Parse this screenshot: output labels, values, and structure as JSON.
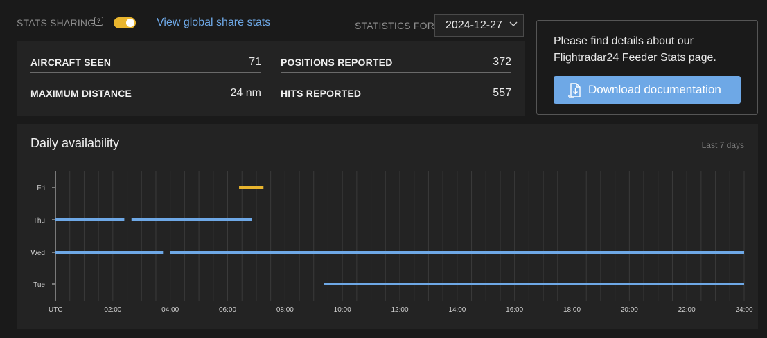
{
  "top": {
    "sharing_label": "STATS SHARING",
    "help_glyph": "?",
    "toggle_on": true,
    "global_link": "View global share stats",
    "stats_for_label": "STATISTICS FOR",
    "date_value": "2024-12-27"
  },
  "stats": [
    {
      "label": "AIRCRAFT SEEN",
      "value": "71"
    },
    {
      "label": "MAXIMUM DISTANCE",
      "value": "24 nm"
    },
    {
      "label": "POSITIONS REPORTED",
      "value": "372"
    },
    {
      "label": "HITS REPORTED",
      "value": "557"
    }
  ],
  "doc": {
    "text": "Please find details about our Flightradar24 Feeder Stats page.",
    "button": "Download documentation"
  },
  "availability": {
    "title": "Daily availability",
    "range": "Last 7 days",
    "colors": {
      "current": "#e9b52e",
      "past": "#6ea8e6"
    },
    "chart_data": {
      "type": "gantt",
      "x_start_hour": 0,
      "x_end_hour": 24,
      "x_tick_labels": [
        "UTC",
        "02:00",
        "04:00",
        "06:00",
        "08:00",
        "10:00",
        "12:00",
        "14:00",
        "16:00",
        "18:00",
        "20:00",
        "22:00",
        "24:00"
      ],
      "rows": [
        {
          "day": "Fri",
          "current": true,
          "segments": [
            [
              6.4,
              7.25
            ]
          ]
        },
        {
          "day": "Thu",
          "current": false,
          "segments": [
            [
              0.0,
              2.4
            ],
            [
              2.65,
              6.85
            ]
          ]
        },
        {
          "day": "Wed",
          "current": false,
          "segments": [
            [
              0.0,
              3.75
            ],
            [
              4.0,
              24.0
            ]
          ]
        },
        {
          "day": "Tue",
          "current": false,
          "segments": [
            [
              9.35,
              24.0
            ]
          ]
        }
      ]
    }
  }
}
